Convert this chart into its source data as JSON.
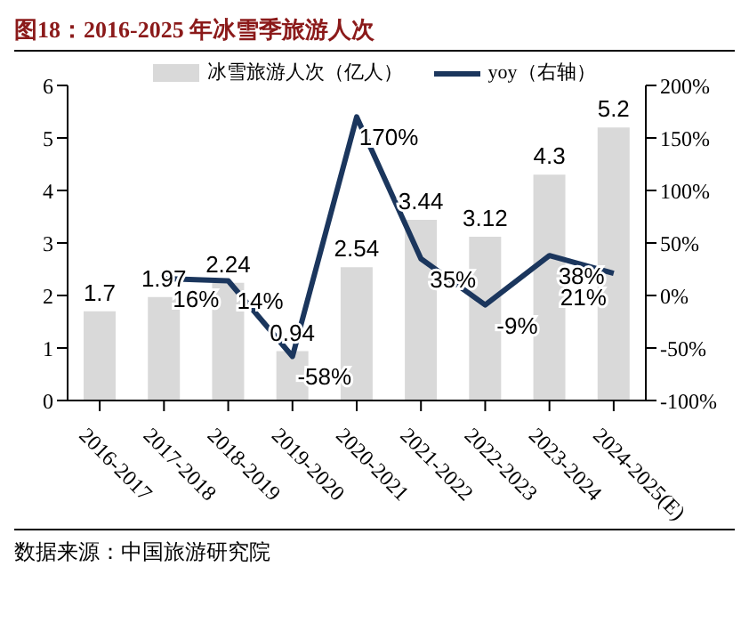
{
  "chart_data": {
    "type": "bar",
    "title": "图18：2016-2025 年冰雪季旅游人次",
    "categories": [
      "2016-2017",
      "2017-2018",
      "2018-2019",
      "2019-2020",
      "2020-2021",
      "2021-2022",
      "2022-2023",
      "2023-2024",
      "2024-2025(E)"
    ],
    "series": [
      {
        "name": "冰雪旅游人次（亿人）",
        "color": "#d9d9d9",
        "values": [
          1.7,
          1.97,
          2.24,
          0.94,
          2.54,
          3.44,
          3.12,
          4.3,
          5.2
        ],
        "value_labels": [
          "1.7",
          "1.97",
          "2.24",
          "0.94",
          "2.54",
          "3.44",
          "3.12",
          "4.3",
          "5.2"
        ]
      },
      {
        "name": "yoy（右轴）",
        "type": "line",
        "axis": "y2",
        "color": "#1b365d",
        "values": [
          null,
          16,
          14,
          -58,
          170,
          35,
          -9,
          38,
          21
        ],
        "value_labels": [
          null,
          "16%",
          "14%",
          "-58%",
          "170%",
          "35%",
          "-9%",
          "38%",
          "21%"
        ]
      }
    ],
    "ylim": [
      0,
      6
    ],
    "yticks": [
      0,
      1,
      2,
      3,
      4,
      5,
      6
    ],
    "y2lim": [
      -100,
      200
    ],
    "y2ticks": [
      {
        "value": -100,
        "label": "-100%"
      },
      {
        "value": -50,
        "label": "-50%"
      },
      {
        "value": 0,
        "label": "0%"
      },
      {
        "value": 50,
        "label": "50%"
      },
      {
        "value": 100,
        "label": "100%"
      },
      {
        "value": 150,
        "label": "150%"
      },
      {
        "value": 200,
        "label": "200%"
      }
    ],
    "legend": "top",
    "marker": "none",
    "line_style": "solid",
    "annotations": [
      "数据来源：中国旅游研究院"
    ]
  }
}
